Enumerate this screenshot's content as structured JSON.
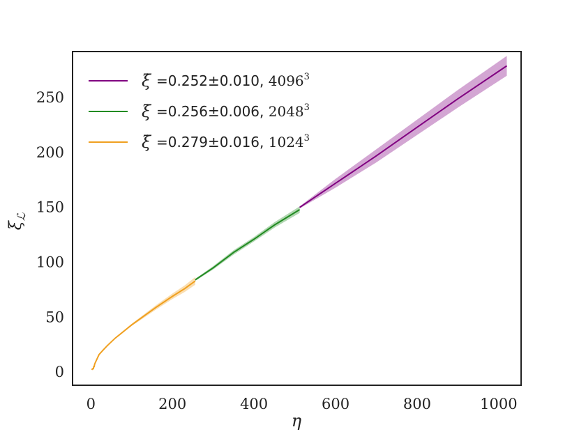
{
  "chart_data": {
    "type": "line",
    "xlabel": "η",
    "ylabel": "ξ_ℒ",
    "xlim": [
      -45,
      1055
    ],
    "ylim": [
      -12,
      292
    ],
    "xticks": [
      0,
      200,
      400,
      600,
      800,
      1000
    ],
    "yticks": [
      0,
      50,
      100,
      150,
      200,
      250
    ],
    "xtick_labels": [
      "0",
      "200",
      "400",
      "600",
      "800",
      "1000"
    ],
    "ytick_labels": [
      "0",
      "50",
      "100",
      "150",
      "200",
      "250"
    ],
    "grid": false,
    "legend_position": "top-left",
    "series": [
      {
        "name": "ξ̇ =0.252±0.010, 4096³",
        "legend_main": "=0.252±0.010,",
        "legend_size": "4096",
        "color": "#800080",
        "x": [
          512,
          600,
          700,
          800,
          900,
          1020
        ],
        "y": [
          150,
          172,
          197,
          223,
          249,
          279
        ],
        "band": [
          1,
          4,
          6,
          7,
          8,
          9
        ]
      },
      {
        "name": "ξ̇ =0.256±0.006, 2048³",
        "legend_main": "=0.256±0.006,",
        "legend_size": "2048",
        "color": "#228B22",
        "x": [
          256,
          300,
          350,
          400,
          450,
          512
        ],
        "y": [
          84,
          95,
          109,
          121,
          134,
          148
        ],
        "band": [
          1,
          1.5,
          2,
          2,
          2.5,
          3
        ]
      },
      {
        "name": "ξ̇ =0.279±0.016, 1024³",
        "legend_main": "=0.279±0.016,",
        "legend_size": "1024",
        "color": "#F0A020",
        "x": [
          2,
          4,
          6,
          7,
          8,
          9,
          10,
          15,
          20,
          30,
          40,
          60,
          80,
          100,
          130,
          160,
          200,
          230,
          256
        ],
        "y": [
          2,
          3,
          3,
          5,
          5,
          7,
          8,
          12,
          16,
          20,
          24,
          31,
          37,
          43,
          51,
          59,
          69,
          76,
          83
        ],
        "band": [
          0,
          0,
          0,
          0,
          0,
          0,
          0,
          0,
          0,
          0,
          0,
          0,
          0.5,
          1,
          1.5,
          2,
          2.5,
          3,
          3.5
        ]
      }
    ]
  }
}
